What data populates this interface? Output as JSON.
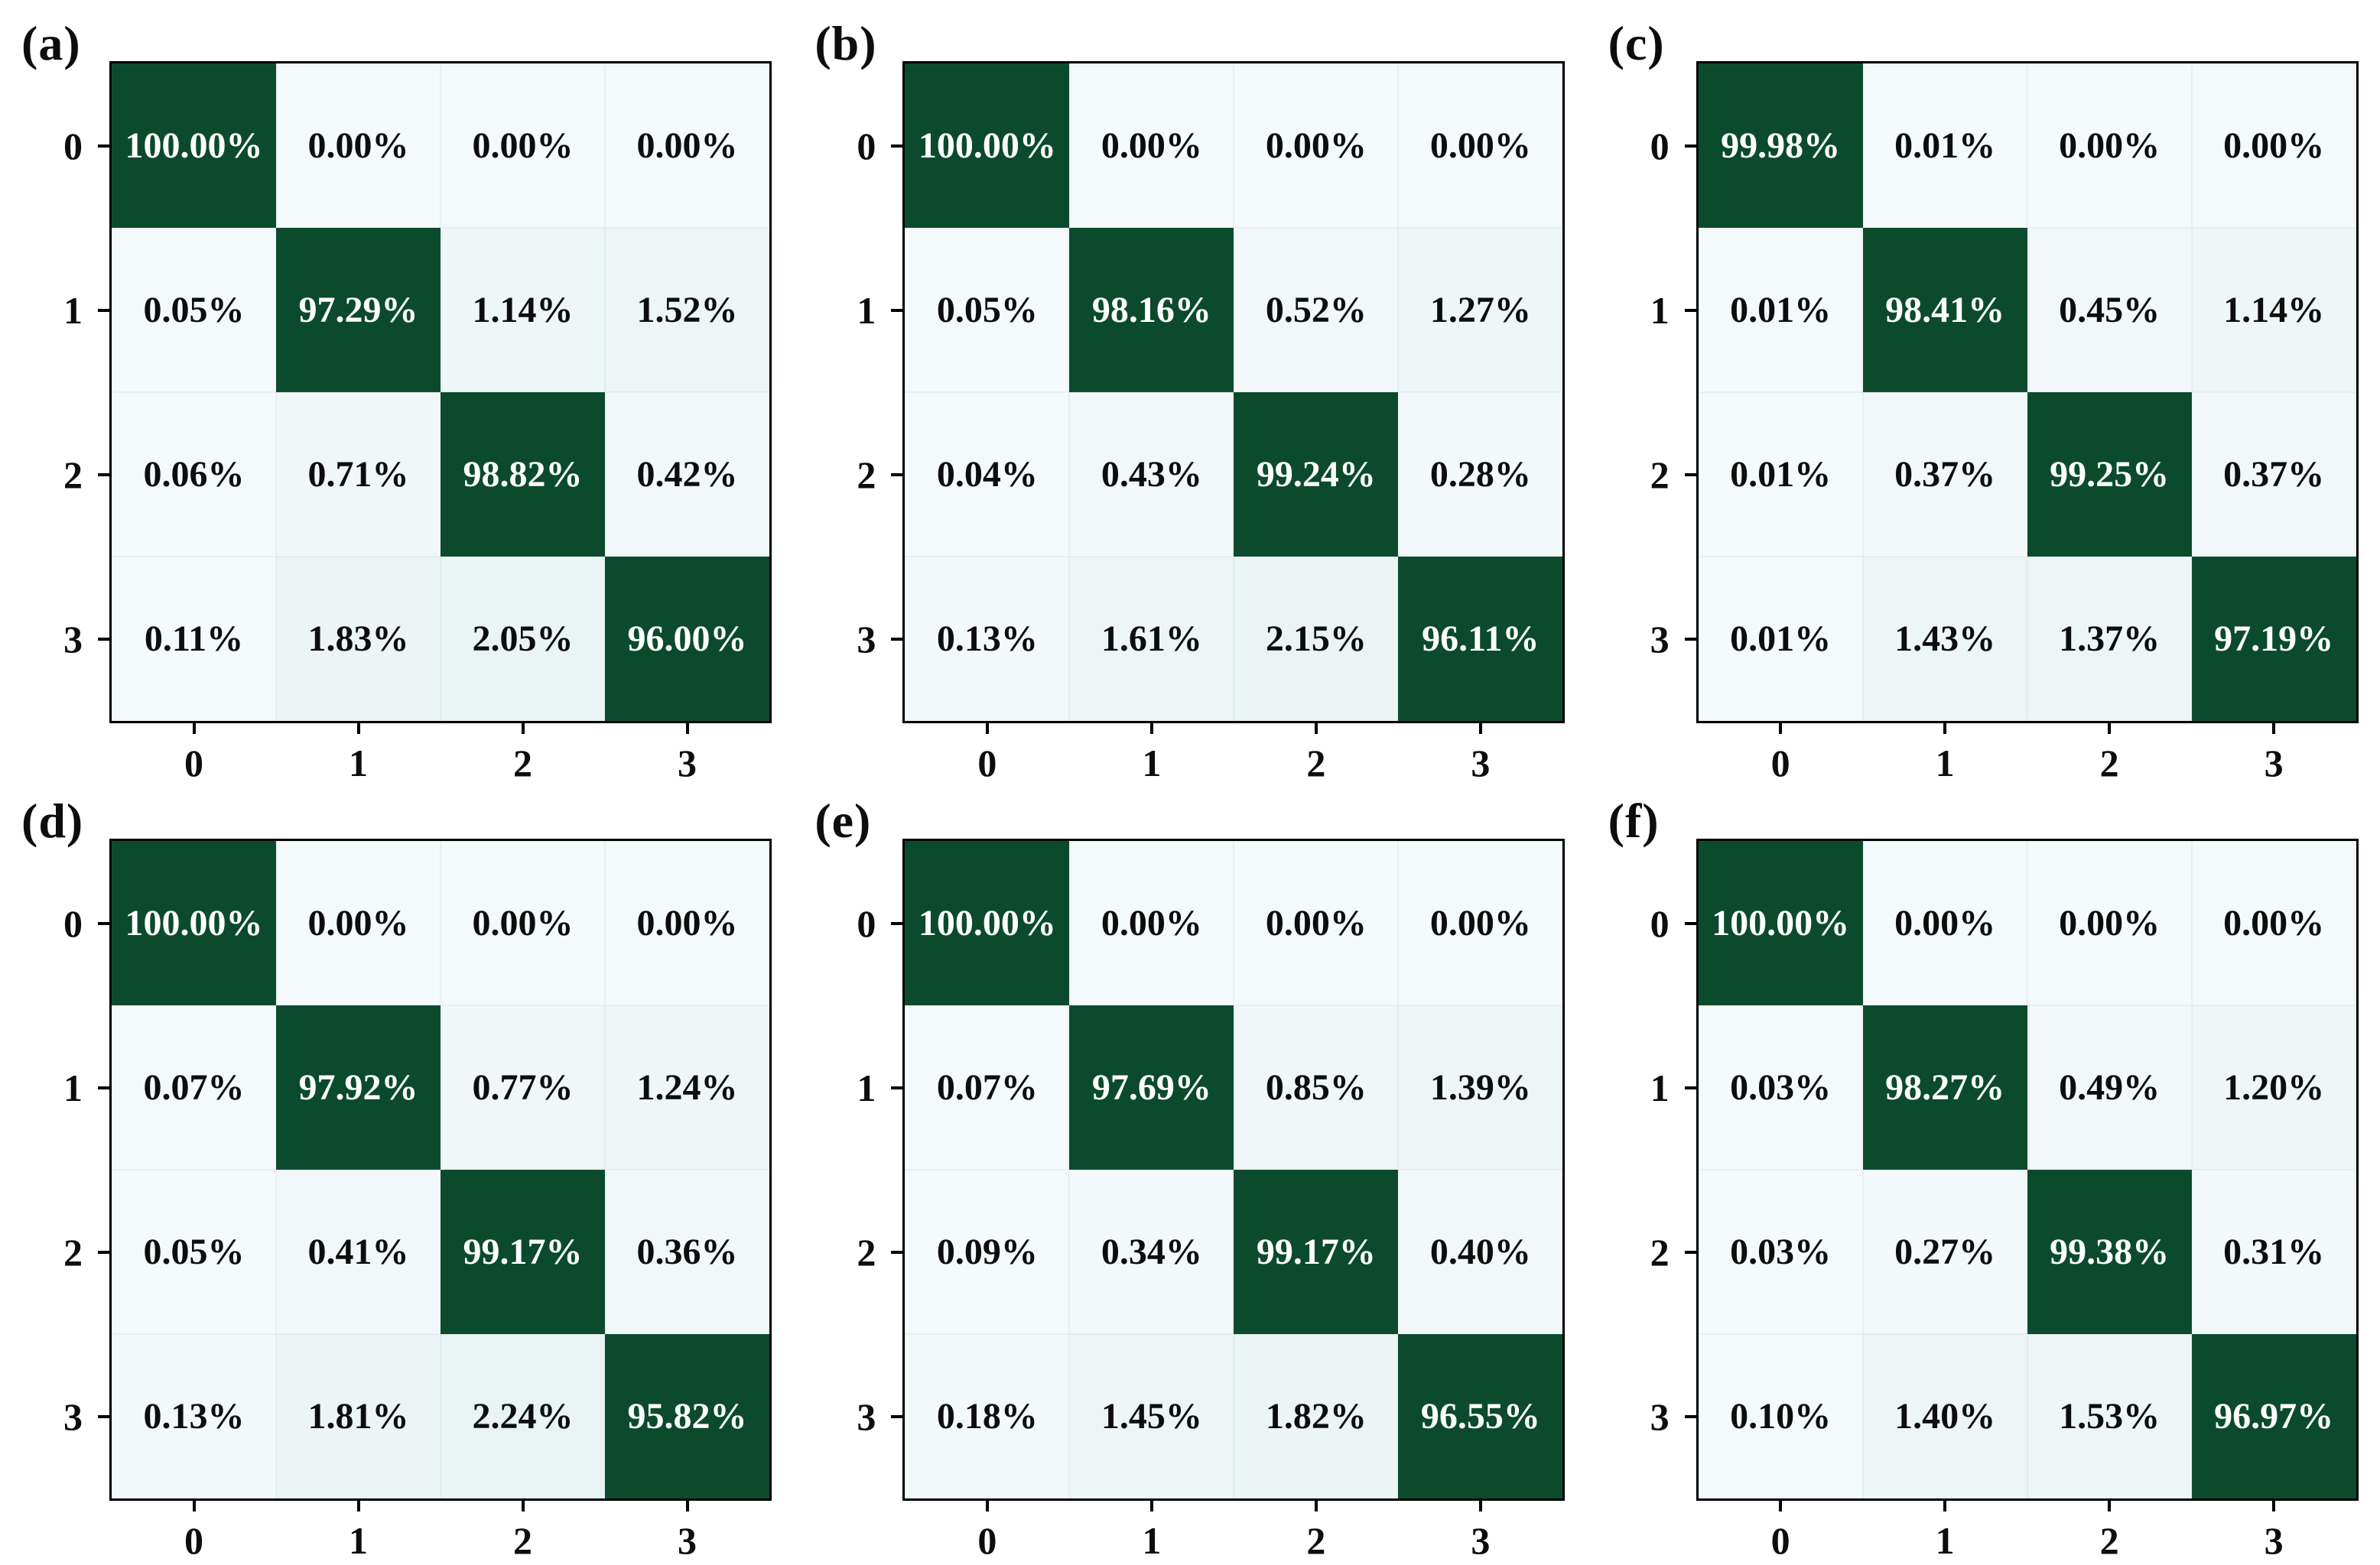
{
  "colors": {
    "diagonal_dark_green": "#0b4a2d",
    "offdiag_light_low": "#f4f9fb",
    "offdiag_light_high": "#e7f1f1",
    "cell_text_light": "#ffffff",
    "cell_text_dark": "#0d0d0d",
    "spine_and_ticks": "#000000",
    "background": "#ffffff"
  },
  "chart_data": [
    {
      "type": "heatmap",
      "title": "(a)",
      "x_categories": [
        "0",
        "1",
        "2",
        "3"
      ],
      "y_categories": [
        "0",
        "1",
        "2",
        "3"
      ],
      "unit": "%",
      "value_format": "2 decimal places + %",
      "values": [
        [
          100.0,
          0.0,
          0.0,
          0.0
        ],
        [
          0.05,
          97.29,
          1.14,
          1.52
        ],
        [
          0.06,
          0.71,
          98.82,
          0.42
        ],
        [
          0.11,
          1.83,
          2.05,
          96.0
        ]
      ],
      "colormap": "white-blue tint to dark green (BuGn-like)",
      "legend": "none",
      "grid": "off"
    },
    {
      "type": "heatmap",
      "title": "(b)",
      "x_categories": [
        "0",
        "1",
        "2",
        "3"
      ],
      "y_categories": [
        "0",
        "1",
        "2",
        "3"
      ],
      "unit": "%",
      "value_format": "2 decimal places + %",
      "values": [
        [
          100.0,
          0.0,
          0.0,
          0.0
        ],
        [
          0.05,
          98.16,
          0.52,
          1.27
        ],
        [
          0.04,
          0.43,
          99.24,
          0.28
        ],
        [
          0.13,
          1.61,
          2.15,
          96.11
        ]
      ],
      "colormap": "white-blue tint to dark green (BuGn-like)",
      "legend": "none",
      "grid": "off"
    },
    {
      "type": "heatmap",
      "title": "(c)",
      "x_categories": [
        "0",
        "1",
        "2",
        "3"
      ],
      "y_categories": [
        "0",
        "1",
        "2",
        "3"
      ],
      "unit": "%",
      "value_format": "2 decimal places + %",
      "values": [
        [
          99.98,
          0.01,
          0.0,
          0.0
        ],
        [
          0.01,
          98.41,
          0.45,
          1.14
        ],
        [
          0.01,
          0.37,
          99.25,
          0.37
        ],
        [
          0.01,
          1.43,
          1.37,
          97.19
        ]
      ],
      "colormap": "white-blue tint to dark green (BuGn-like)",
      "legend": "none",
      "grid": "off"
    },
    {
      "type": "heatmap",
      "title": "(d)",
      "x_categories": [
        "0",
        "1",
        "2",
        "3"
      ],
      "y_categories": [
        "0",
        "1",
        "2",
        "3"
      ],
      "unit": "%",
      "value_format": "2 decimal places + %",
      "values": [
        [
          100.0,
          0.0,
          0.0,
          0.0
        ],
        [
          0.07,
          97.92,
          0.77,
          1.24
        ],
        [
          0.05,
          0.41,
          99.17,
          0.36
        ],
        [
          0.13,
          1.81,
          2.24,
          95.82
        ]
      ],
      "colormap": "white-blue tint to dark green (BuGn-like)",
      "legend": "none",
      "grid": "off"
    },
    {
      "type": "heatmap",
      "title": "(e)",
      "x_categories": [
        "0",
        "1",
        "2",
        "3"
      ],
      "y_categories": [
        "0",
        "1",
        "2",
        "3"
      ],
      "unit": "%",
      "value_format": "2 decimal places + %",
      "values": [
        [
          100.0,
          0.0,
          0.0,
          0.0
        ],
        [
          0.07,
          97.69,
          0.85,
          1.39
        ],
        [
          0.09,
          0.34,
          99.17,
          0.4
        ],
        [
          0.18,
          1.45,
          1.82,
          96.55
        ]
      ],
      "colormap": "white-blue tint to dark green (BuGn-like)",
      "legend": "none",
      "grid": "off"
    },
    {
      "type": "heatmap",
      "title": "(f)",
      "x_categories": [
        "0",
        "1",
        "2",
        "3"
      ],
      "y_categories": [
        "0",
        "1",
        "2",
        "3"
      ],
      "unit": "%",
      "value_format": "2 decimal places + %",
      "values": [
        [
          100.0,
          0.0,
          0.0,
          0.0
        ],
        [
          0.03,
          98.27,
          0.49,
          1.2
        ],
        [
          0.03,
          0.27,
          99.38,
          0.31
        ],
        [
          0.1,
          1.4,
          1.53,
          96.97
        ]
      ],
      "colormap": "white-blue tint to dark green (BuGn-like)",
      "legend": "none",
      "grid": "off"
    }
  ],
  "panels": [
    {
      "label": "(a)"
    },
    {
      "label": "(b)"
    },
    {
      "label": "(c)"
    },
    {
      "label": "(d)"
    },
    {
      "label": "(e)"
    },
    {
      "label": "(f)"
    }
  ]
}
